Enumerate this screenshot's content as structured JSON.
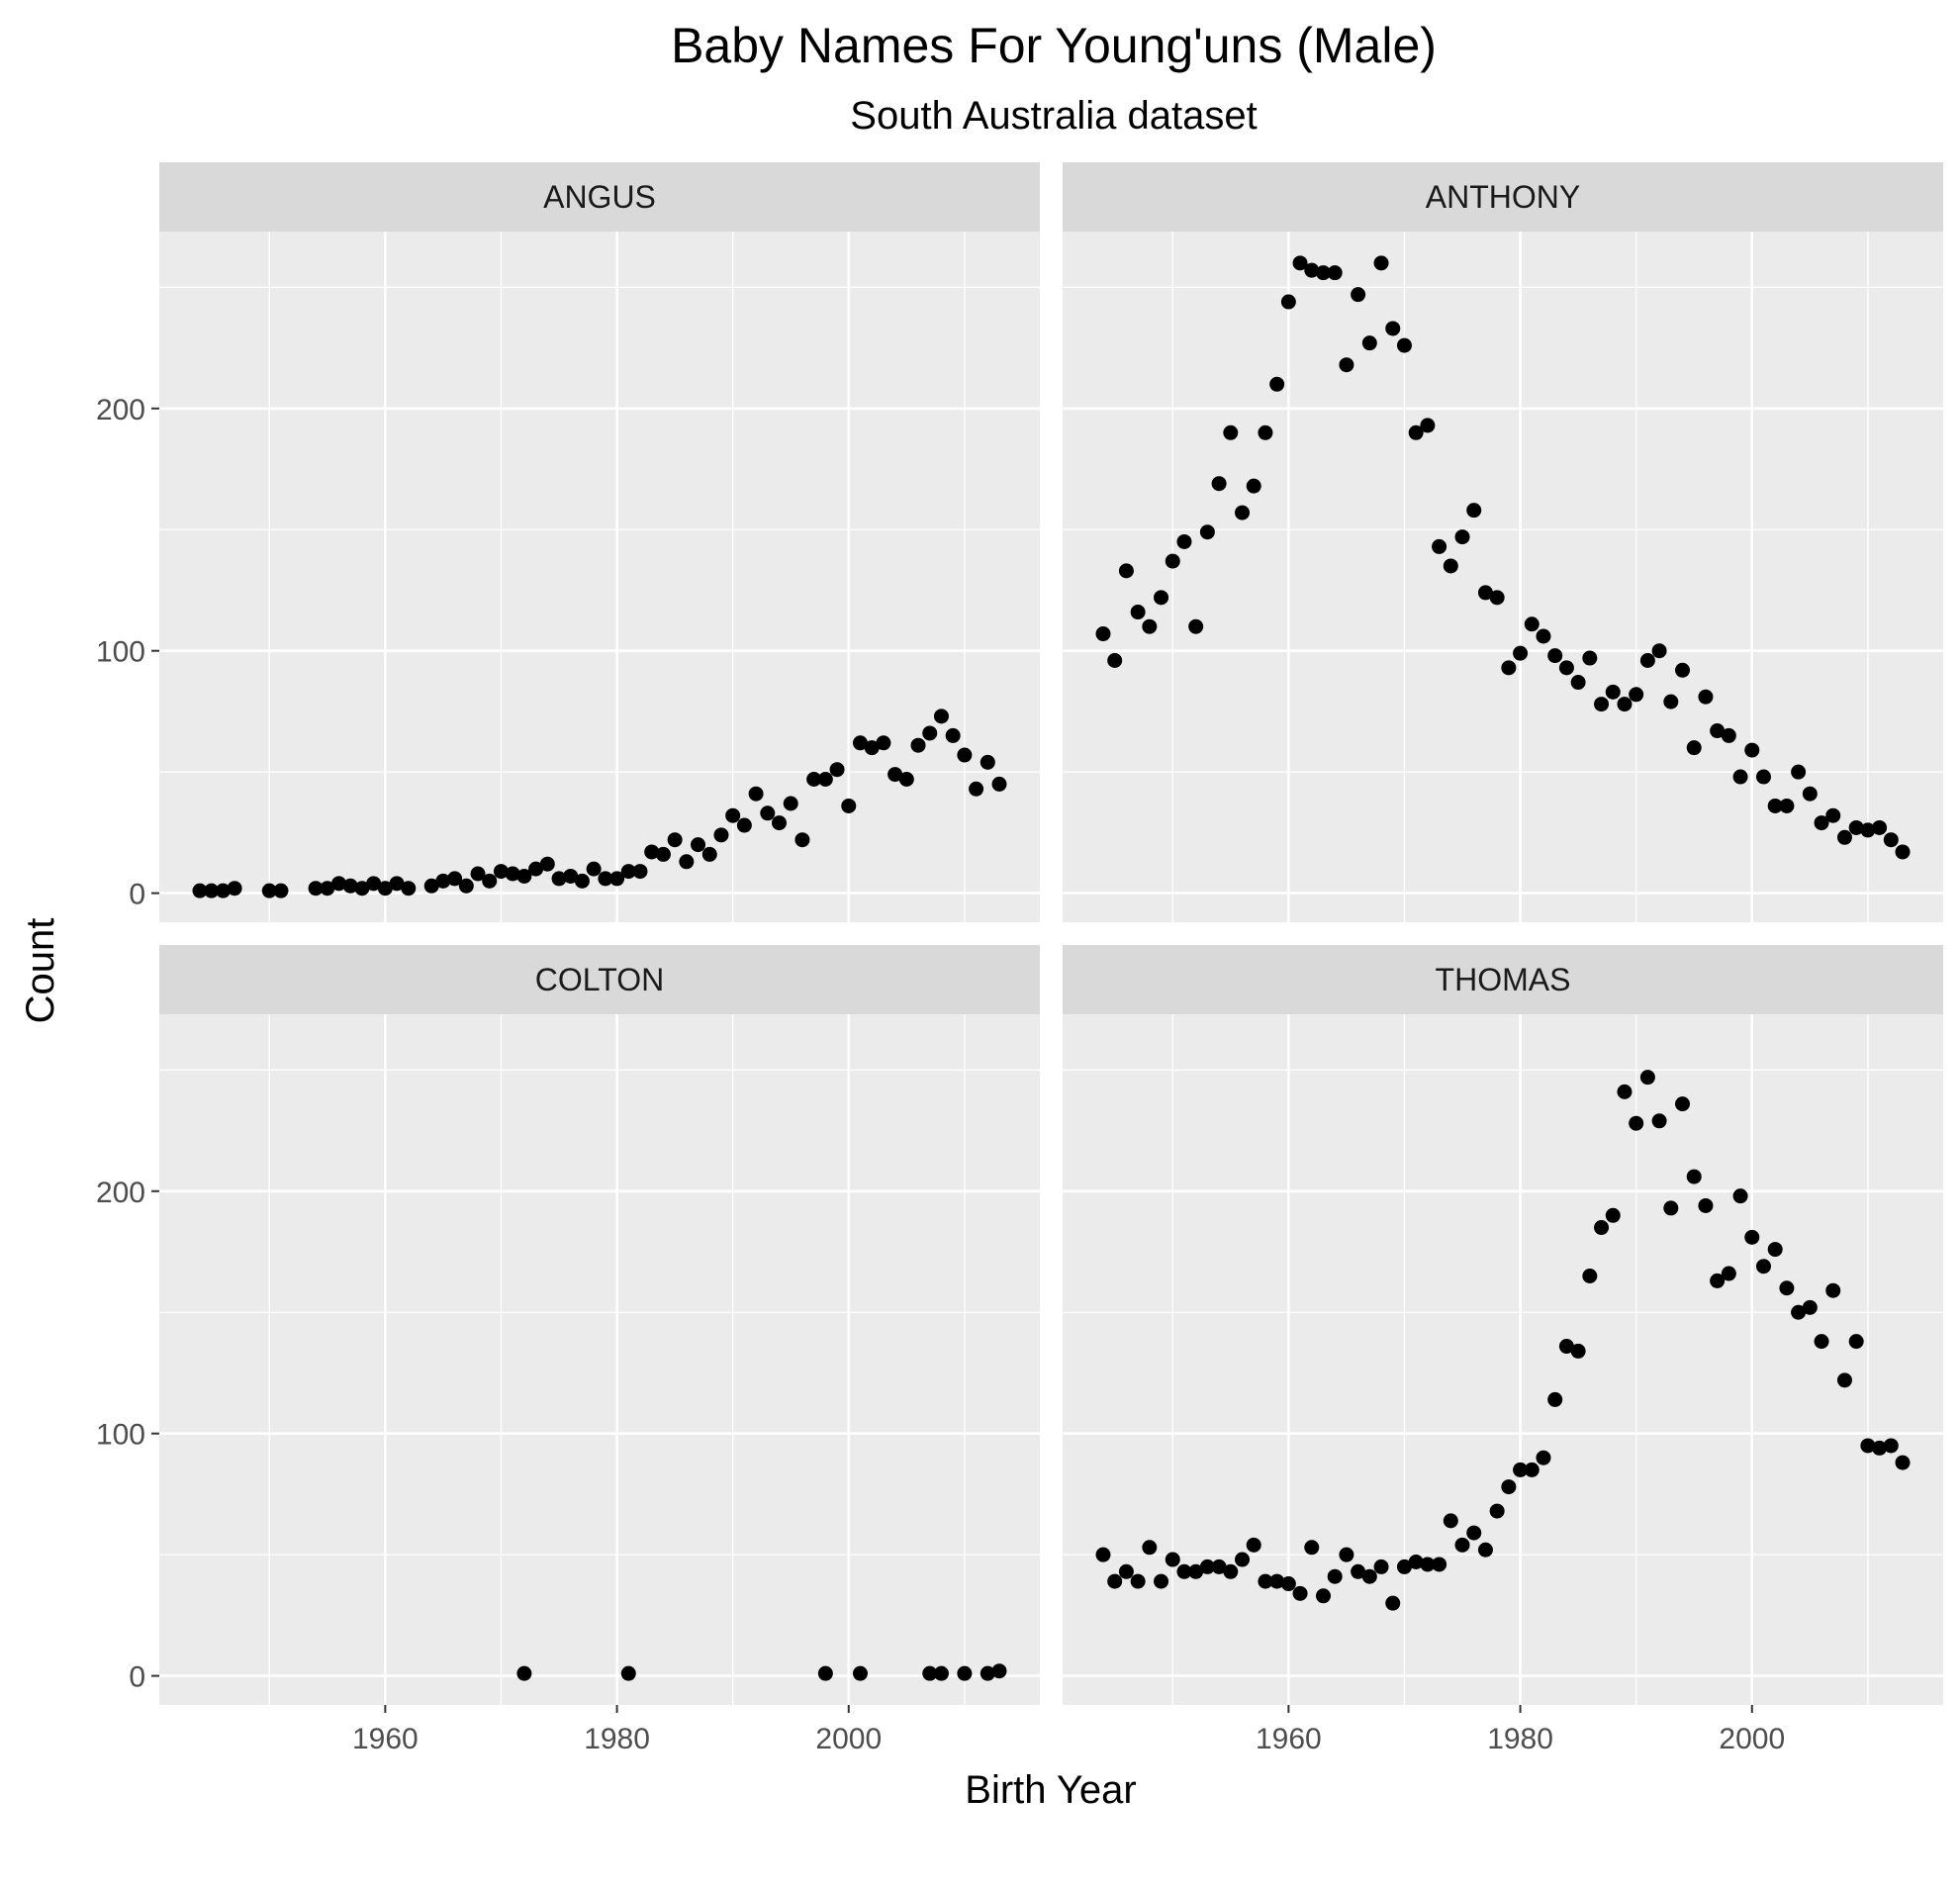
{
  "chart_data": {
    "type": "scatter",
    "title": "Baby Names For Young'uns (Male)",
    "subtitle": "South Australia dataset",
    "xlabel": "Birth Year",
    "ylabel": "Count",
    "xlim": [
      1940.5,
      2016.5
    ],
    "ylim": [
      -12,
      273
    ],
    "x_ticks": [
      1960,
      1980,
      2000
    ],
    "y_ticks": [
      0,
      100,
      200
    ],
    "grid": true,
    "facets": [
      {
        "name": "ANGUS",
        "points": [
          [
            1944,
            1
          ],
          [
            1945,
            1
          ],
          [
            1946,
            1
          ],
          [
            1947,
            2
          ],
          [
            1950,
            1
          ],
          [
            1951,
            1
          ],
          [
            1954,
            2
          ],
          [
            1955,
            2
          ],
          [
            1956,
            4
          ],
          [
            1957,
            3
          ],
          [
            1958,
            2
          ],
          [
            1959,
            4
          ],
          [
            1960,
            2
          ],
          [
            1961,
            4
          ],
          [
            1962,
            2
          ],
          [
            1964,
            3
          ],
          [
            1965,
            5
          ],
          [
            1966,
            6
          ],
          [
            1967,
            3
          ],
          [
            1968,
            8
          ],
          [
            1969,
            5
          ],
          [
            1970,
            9
          ],
          [
            1971,
            8
          ],
          [
            1972,
            7
          ],
          [
            1973,
            10
          ],
          [
            1974,
            12
          ],
          [
            1975,
            6
          ],
          [
            1976,
            7
          ],
          [
            1977,
            5
          ],
          [
            1978,
            10
          ],
          [
            1979,
            6
          ],
          [
            1980,
            6
          ],
          [
            1981,
            9
          ],
          [
            1982,
            9
          ],
          [
            1983,
            17
          ],
          [
            1984,
            16
          ],
          [
            1985,
            22
          ],
          [
            1986,
            13
          ],
          [
            1987,
            20
          ],
          [
            1988,
            16
          ],
          [
            1989,
            24
          ],
          [
            1990,
            32
          ],
          [
            1991,
            28
          ],
          [
            1992,
            41
          ],
          [
            1993,
            33
          ],
          [
            1994,
            29
          ],
          [
            1995,
            37
          ],
          [
            1996,
            22
          ],
          [
            1997,
            47
          ],
          [
            1998,
            47
          ],
          [
            1999,
            51
          ],
          [
            2000,
            36
          ],
          [
            2001,
            62
          ],
          [
            2002,
            60
          ],
          [
            2003,
            62
          ],
          [
            2004,
            49
          ],
          [
            2005,
            47
          ],
          [
            2006,
            61
          ],
          [
            2007,
            66
          ],
          [
            2008,
            73
          ],
          [
            2009,
            65
          ],
          [
            2010,
            57
          ],
          [
            2011,
            43
          ],
          [
            2012,
            54
          ],
          [
            2013,
            45
          ]
        ]
      },
      {
        "name": "ANTHONY",
        "points": [
          [
            1944,
            107
          ],
          [
            1945,
            96
          ],
          [
            1946,
            133
          ],
          [
            1947,
            116
          ],
          [
            1948,
            110
          ],
          [
            1949,
            122
          ],
          [
            1950,
            137
          ],
          [
            1951,
            145
          ],
          [
            1952,
            110
          ],
          [
            1953,
            149
          ],
          [
            1954,
            169
          ],
          [
            1955,
            190
          ],
          [
            1956,
            157
          ],
          [
            1957,
            168
          ],
          [
            1958,
            190
          ],
          [
            1959,
            210
          ],
          [
            1960,
            244
          ],
          [
            1961,
            260
          ],
          [
            1962,
            257
          ],
          [
            1963,
            256
          ],
          [
            1964,
            256
          ],
          [
            1965,
            218
          ],
          [
            1966,
            247
          ],
          [
            1967,
            227
          ],
          [
            1968,
            260
          ],
          [
            1969,
            233
          ],
          [
            1970,
            226
          ],
          [
            1971,
            190
          ],
          [
            1972,
            193
          ],
          [
            1973,
            143
          ],
          [
            1974,
            135
          ],
          [
            1975,
            147
          ],
          [
            1976,
            158
          ],
          [
            1977,
            124
          ],
          [
            1978,
            122
          ],
          [
            1979,
            93
          ],
          [
            1980,
            99
          ],
          [
            1981,
            111
          ],
          [
            1982,
            106
          ],
          [
            1983,
            98
          ],
          [
            1984,
            93
          ],
          [
            1985,
            87
          ],
          [
            1986,
            97
          ],
          [
            1987,
            78
          ],
          [
            1988,
            83
          ],
          [
            1989,
            78
          ],
          [
            1990,
            82
          ],
          [
            1991,
            96
          ],
          [
            1992,
            100
          ],
          [
            1993,
            79
          ],
          [
            1994,
            92
          ],
          [
            1995,
            60
          ],
          [
            1996,
            81
          ],
          [
            1997,
            67
          ],
          [
            1998,
            65
          ],
          [
            1999,
            48
          ],
          [
            2000,
            59
          ],
          [
            2001,
            48
          ],
          [
            2002,
            36
          ],
          [
            2003,
            36
          ],
          [
            2004,
            50
          ],
          [
            2005,
            41
          ],
          [
            2006,
            29
          ],
          [
            2007,
            32
          ],
          [
            2008,
            23
          ],
          [
            2009,
            27
          ],
          [
            2010,
            26
          ],
          [
            2011,
            27
          ],
          [
            2012,
            22
          ],
          [
            2013,
            17
          ]
        ]
      },
      {
        "name": "COLTON",
        "points": [
          [
            1972,
            1
          ],
          [
            1981,
            1
          ],
          [
            1998,
            1
          ],
          [
            2001,
            1
          ],
          [
            2007,
            1
          ],
          [
            2008,
            1
          ],
          [
            2010,
            1
          ],
          [
            2012,
            1
          ],
          [
            2013,
            2
          ]
        ]
      },
      {
        "name": "THOMAS",
        "points": [
          [
            1944,
            50
          ],
          [
            1945,
            39
          ],
          [
            1946,
            43
          ],
          [
            1947,
            39
          ],
          [
            1948,
            53
          ],
          [
            1949,
            39
          ],
          [
            1950,
            48
          ],
          [
            1951,
            43
          ],
          [
            1952,
            43
          ],
          [
            1953,
            45
          ],
          [
            1954,
            45
          ],
          [
            1955,
            43
          ],
          [
            1956,
            48
          ],
          [
            1957,
            54
          ],
          [
            1958,
            39
          ],
          [
            1959,
            39
          ],
          [
            1960,
            38
          ],
          [
            1961,
            34
          ],
          [
            1962,
            53
          ],
          [
            1963,
            33
          ],
          [
            1964,
            41
          ],
          [
            1965,
            50
          ],
          [
            1966,
            43
          ],
          [
            1967,
            41
          ],
          [
            1968,
            45
          ],
          [
            1969,
            30
          ],
          [
            1970,
            45
          ],
          [
            1971,
            47
          ],
          [
            1972,
            46
          ],
          [
            1973,
            46
          ],
          [
            1974,
            64
          ],
          [
            1975,
            54
          ],
          [
            1976,
            59
          ],
          [
            1977,
            52
          ],
          [
            1978,
            68
          ],
          [
            1979,
            78
          ],
          [
            1980,
            85
          ],
          [
            1981,
            85
          ],
          [
            1982,
            90
          ],
          [
            1983,
            114
          ],
          [
            1984,
            136
          ],
          [
            1985,
            134
          ],
          [
            1986,
            165
          ],
          [
            1987,
            185
          ],
          [
            1988,
            190
          ],
          [
            1989,
            241
          ],
          [
            1990,
            228
          ],
          [
            1991,
            247
          ],
          [
            1992,
            229
          ],
          [
            1993,
            193
          ],
          [
            1994,
            236
          ],
          [
            1995,
            206
          ],
          [
            1996,
            194
          ],
          [
            1997,
            163
          ],
          [
            1998,
            166
          ],
          [
            1999,
            198
          ],
          [
            2000,
            181
          ],
          [
            2001,
            169
          ],
          [
            2002,
            176
          ],
          [
            2003,
            160
          ],
          [
            2004,
            150
          ],
          [
            2005,
            152
          ],
          [
            2006,
            138
          ],
          [
            2007,
            159
          ],
          [
            2008,
            122
          ],
          [
            2009,
            138
          ],
          [
            2010,
            95
          ],
          [
            2011,
            94
          ],
          [
            2012,
            95
          ],
          [
            2013,
            88
          ]
        ]
      }
    ]
  }
}
